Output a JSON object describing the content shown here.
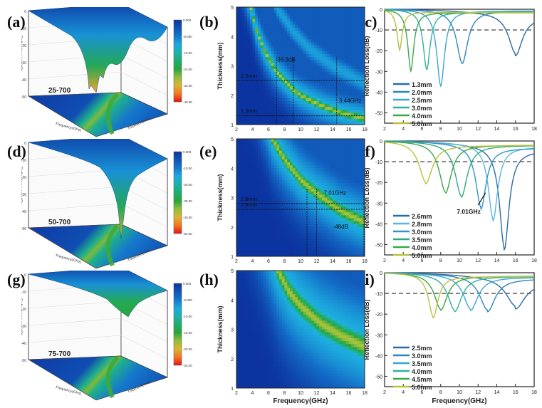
{
  "panel_labels": [
    "(a)",
    "(b)",
    "(c)",
    "(d)",
    "(e)",
    "(f)",
    "(g)",
    "(h)",
    "(i)"
  ],
  "chart_data": [
    {
      "id": "a",
      "type": "surface3d",
      "sample": "25-700",
      "zlabel": "Reflection loss(dB)",
      "xlabel": "Frequency(GHz)",
      "ylabel": "Thickness(mm)",
      "z_ticks": [
        "0",
        "-10",
        "-20",
        "-30",
        "-40",
        "-50"
      ],
      "colorbar": {
        "ticks": [
          "0.000",
          "-8.000",
          "-16.00",
          "-24.00",
          "-32.00",
          "-40.00"
        ],
        "range": [
          -40,
          0
        ]
      },
      "min_rl": -36.3
    },
    {
      "id": "b",
      "type": "heatmap",
      "xlabel": "",
      "ylabel": "Thickness(mm)",
      "x_ticks": [
        "2",
        "4",
        "6",
        "8",
        "10",
        "12",
        "14",
        "16",
        "18"
      ],
      "y_ticks": [
        "1",
        "2",
        "3",
        "4",
        "5"
      ],
      "xlim": [
        2,
        18
      ],
      "ylim": [
        1,
        5
      ],
      "ridge": [
        [
          3.8,
          5.0
        ],
        [
          4.5,
          4.2
        ],
        [
          5.5,
          3.5
        ],
        [
          7,
          2.8
        ],
        [
          8,
          2.5
        ],
        [
          9,
          2.2
        ],
        [
          10,
          2.0
        ],
        [
          11,
          1.85
        ],
        [
          13,
          1.6
        ],
        [
          15,
          1.4
        ],
        [
          18,
          1.2
        ]
      ],
      "ridge_width": 0.9,
      "secondary_ridge": [
        [
          7,
          5.0
        ],
        [
          9,
          4.2
        ],
        [
          11,
          3.6
        ],
        [
          14,
          3.0
        ],
        [
          18,
          2.4
        ]
      ],
      "hlines": [
        {
          "y": 2.5,
          "label": "2.5mm"
        },
        {
          "y": 1.3,
          "label": "1.3mm"
        }
      ],
      "vlines": [
        7.0,
        9.1,
        14.5
      ],
      "annotations": [
        {
          "text": "-36.3dB",
          "x": 8.1,
          "y": 3.15
        },
        {
          "text": "3.44GHz",
          "x": 16.2,
          "y": 1.75
        }
      ]
    },
    {
      "id": "c",
      "type": "line",
      "xlabel": "",
      "ylabel": "Reflection Loss(dB)",
      "x_ticks": [
        "2",
        "4",
        "6",
        "8",
        "10",
        "12",
        "14",
        "16",
        "18"
      ],
      "y_ticks": [
        "0",
        "-10",
        "-20",
        "-30",
        "-40",
        "-50"
      ],
      "xlim": [
        2,
        18
      ],
      "ylim": [
        -55,
        0
      ],
      "threshold": -10,
      "series": [
        {
          "name": "1.3mm",
          "color": "#2a6aa8",
          "peak_x": 16.0,
          "peak_y": -18.8,
          "width": 1.6,
          "tail": -10
        },
        {
          "name": "2.0mm",
          "color": "#2f86c0",
          "peak_x": 10.3,
          "peak_y": -25.5,
          "width": 1.3,
          "tail": -2
        },
        {
          "name": "2.5mm",
          "color": "#3aa6d4",
          "peak_x": 8.0,
          "peak_y": -36.3,
          "width": 0.9,
          "tail": -2
        },
        {
          "name": "3.0mm",
          "color": "#2fb19a",
          "peak_x": 6.5,
          "peak_y": -28.0,
          "width": 0.8,
          "tail": -4
        },
        {
          "name": "4.0mm",
          "color": "#3aa74a",
          "peak_x": 4.8,
          "peak_y": -28.2,
          "width": 0.7,
          "tail": -4.5
        },
        {
          "name": "5.0mm",
          "color": "#b9c23a",
          "peak_x": 3.6,
          "peak_y": -18.3,
          "width": 0.6,
          "tail": -4
        }
      ]
    },
    {
      "id": "d",
      "type": "surface3d",
      "sample": "50-700",
      "zlabel": "Reflection Loss(dB)",
      "xlabel": "Frequency(GHz)",
      "ylabel": "Thickness(mm)",
      "z_ticks": [
        "0",
        "-10",
        "-20",
        "-30",
        "-40",
        "-50"
      ],
      "colorbar": {
        "ticks": [
          "0.000",
          "-10.00",
          "-20.00",
          "-30.00",
          "-40.00",
          "-50.00"
        ],
        "range": [
          -50,
          0
        ]
      },
      "min_rl": -48
    },
    {
      "id": "e",
      "type": "heatmap",
      "xlabel": "",
      "ylabel": "Thickness(mm)",
      "x_ticks": [
        "2",
        "4",
        "6",
        "8",
        "10",
        "12",
        "14",
        "16",
        "18"
      ],
      "y_ticks": [
        "1",
        "2",
        "3",
        "4",
        "5"
      ],
      "xlim": [
        2,
        18
      ],
      "ylim": [
        1,
        5
      ],
      "ridge": [
        [
          6.5,
          5.0
        ],
        [
          8,
          4.3
        ],
        [
          10,
          3.6
        ],
        [
          12,
          3.15
        ],
        [
          14,
          2.75
        ],
        [
          15,
          2.55
        ],
        [
          16.5,
          2.35
        ],
        [
          18,
          2.15
        ]
      ],
      "ridge_width": 1.6,
      "secondary_ridge": [],
      "hlines": [
        {
          "y": 2.8,
          "label": "2.8mm"
        },
        {
          "y": 2.6,
          "label": "2.6mm"
        }
      ],
      "vlines": [
        10.8,
        12.0,
        17.9
      ],
      "annotations": [
        {
          "text": "7.01GHz",
          "x": 14.3,
          "y": 3.1
        },
        {
          "text": "-48dB",
          "x": 15.0,
          "y": 1.95
        }
      ]
    },
    {
      "id": "f",
      "type": "line",
      "xlabel": "",
      "ylabel": "Reflection Loss(dB)",
      "x_ticks": [
        "2",
        "4",
        "6",
        "8",
        "10",
        "12",
        "14",
        "16",
        "18"
      ],
      "y_ticks": [
        "0",
        "-10",
        "-20",
        "-30",
        "-40",
        "-50"
      ],
      "xlim": [
        2,
        18
      ],
      "ylim": [
        -55,
        0
      ],
      "threshold": -10,
      "annotation": {
        "text": "7.01GHz",
        "x": 11.0,
        "y": -35
      },
      "series": [
        {
          "name": "2.6mm",
          "color": "#2a6aa8",
          "peak_x": 14.8,
          "peak_y": -48.0,
          "width": 1.1,
          "tail": -12.5
        },
        {
          "name": "2.8mm",
          "color": "#58b4e0",
          "peak_x": 13.6,
          "peak_y": -35.5,
          "width": 1.1,
          "tail": -8
        },
        {
          "name": "3.0mm",
          "color": "#2f95c8",
          "peak_x": 12.3,
          "peak_y": -29.5,
          "width": 1.2,
          "tail": -9.5
        },
        {
          "name": "3.5mm",
          "color": "#2fa882",
          "peak_x": 10.2,
          "peak_y": -25.0,
          "width": 1.4,
          "tail": -6
        },
        {
          "name": "4.0mm",
          "color": "#3aa74a",
          "peak_x": 8.5,
          "peak_y": -23.3,
          "width": 1.4,
          "tail": -5.5
        },
        {
          "name": "5.0mm",
          "color": "#b9c23a",
          "peak_x": 6.4,
          "peak_y": -18.5,
          "width": 1.5,
          "tail": -6
        }
      ]
    },
    {
      "id": "g",
      "type": "surface3d",
      "sample": "75-700",
      "zlabel": "Reflection Loss(dB)",
      "xlabel": "Frequency(GHz)",
      "ylabel": "Thickness(mm)",
      "z_ticks": [
        "0",
        "-10",
        "-20",
        "-30",
        "-40",
        "-50"
      ],
      "colorbar": {
        "ticks": [
          "0.000",
          "-5.000",
          "-10.00",
          "-15.00",
          "-20.00",
          "-25.00"
        ],
        "range": [
          -25,
          0
        ]
      },
      "min_rl": -20
    },
    {
      "id": "h",
      "type": "heatmap",
      "xlabel": "Frequency(GHz)",
      "ylabel": "Thickness(mm)",
      "x_ticks": [
        "2",
        "4",
        "6",
        "8",
        "10",
        "12",
        "14",
        "16",
        "18"
      ],
      "y_ticks": [
        "1",
        "2",
        "3",
        "4",
        "5"
      ],
      "xlim": [
        2,
        18
      ],
      "ylim": [
        1,
        5
      ],
      "ridge": [
        [
          7.2,
          5.0
        ],
        [
          8.5,
          4.3
        ],
        [
          10,
          3.8
        ],
        [
          12.5,
          3.2
        ],
        [
          15,
          2.8
        ],
        [
          18,
          2.4
        ]
      ],
      "ridge_width": 2.6,
      "secondary_ridge": [],
      "hlines": [],
      "vlines": [],
      "annotations": []
    },
    {
      "id": "i",
      "type": "line",
      "xlabel": "Frequency(GHz)",
      "ylabel": "Reflection Loss(dB)",
      "x_ticks": [
        "2",
        "4",
        "6",
        "8",
        "10",
        "12",
        "14",
        "16",
        "18"
      ],
      "y_ticks": [
        "0",
        "-10",
        "-20",
        "-30",
        "-40",
        "-50"
      ],
      "xlim": [
        2,
        18
      ],
      "ylim": [
        -55,
        0
      ],
      "threshold": -10,
      "series": [
        {
          "name": "2.5mm",
          "color": "#2a6aa8",
          "peak_x": 16.0,
          "peak_y": -13.0,
          "width": 2.2,
          "tail": -12.5
        },
        {
          "name": "3.0mm",
          "color": "#2f86c0",
          "peak_x": 13.0,
          "peak_y": -16.0,
          "width": 1.8,
          "tail": -8
        },
        {
          "name": "3.5mm",
          "color": "#3aa6d4",
          "peak_x": 11.2,
          "peak_y": -16.0,
          "width": 1.7,
          "tail": -6
        },
        {
          "name": "4.0mm",
          "color": "#2fb19a",
          "peak_x": 9.5,
          "peak_y": -17.0,
          "width": 1.6,
          "tail": -5
        },
        {
          "name": "4.5mm",
          "color": "#3aa74a",
          "peak_x": 8.0,
          "peak_y": -16.5,
          "width": 1.5,
          "tail": -4.5
        },
        {
          "name": "5.0mm",
          "color": "#b9c23a",
          "peak_x": 7.2,
          "peak_y": -20.0,
          "width": 1.1,
          "tail": -5
        }
      ]
    }
  ]
}
